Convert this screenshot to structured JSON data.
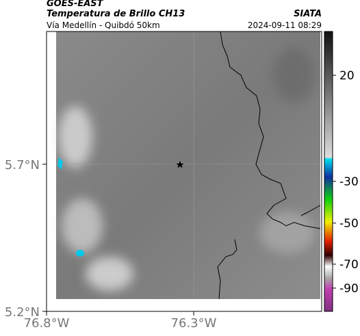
{
  "header": {
    "source": "GOES-EAST",
    "title": "Temperatura de Brillo CH13",
    "org": "SIATA",
    "route": "Vía Medellín - Quibdó 50km",
    "datetime": "2024-09-11 08:29"
  },
  "axes": {
    "x_ticks": [
      "76.8°W",
      "76.3°W"
    ],
    "y_ticks": [
      "5.7°N",
      "5.2°N"
    ]
  },
  "colorbar": {
    "ticks": [
      20,
      -30,
      -50,
      -70,
      -90
    ]
  }
}
